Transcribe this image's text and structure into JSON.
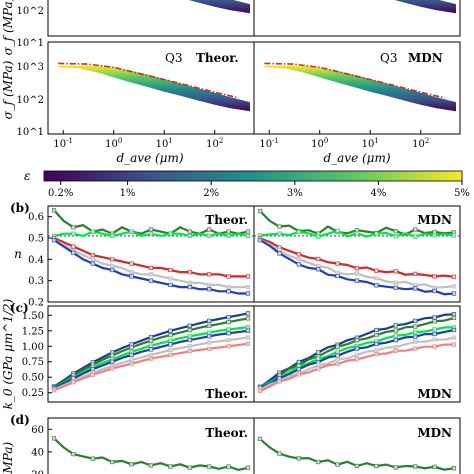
{
  "figure": {
    "colorbar": {
      "label": "ε",
      "ticks": [
        "0.2%",
        "1%",
        "2%",
        "3%",
        "4%",
        "5%"
      ],
      "tick_values": [
        0.2,
        1,
        2,
        3,
        4,
        5
      ],
      "min": 0.0,
      "max": 5.0,
      "colormap": [
        "#440154",
        "#3b528b",
        "#21918c",
        "#5ec962",
        "#fde725"
      ]
    },
    "panels": [
      {
        "id": "a-top-left",
        "tag": "",
        "title": ""
      },
      {
        "id": "a-top-right",
        "tag": "",
        "title": ""
      },
      {
        "id": "a-bot-left",
        "tag": "Q3",
        "title": "Theor."
      },
      {
        "id": "a-bot-right",
        "tag": "Q3",
        "title": "MDN"
      },
      {
        "id": "b-left",
        "label": "(b)",
        "title": "Theor."
      },
      {
        "id": "b-right",
        "label": "",
        "title": "MDN"
      },
      {
        "id": "c-left",
        "label": "(c)",
        "title": "Theor."
      },
      {
        "id": "c-right",
        "label": "",
        "title": "MDN"
      },
      {
        "id": "d-left",
        "label": "(d)",
        "title": "Theor."
      },
      {
        "id": "d-right",
        "label": "",
        "title": "MDN"
      }
    ],
    "axis_labels": {
      "sigma": "σ_f (MPa)",
      "n": "n",
      "k0": "k_0 (GPa μm^1/2)",
      "d": "(MPa)",
      "dave_left": "d_ave (μm)",
      "dave_right": "d_ave (μm)"
    },
    "ticks": {
      "sigma_y": [
        "10^1",
        "10^2",
        "10^3"
      ],
      "dave_x": [
        "10^-1",
        "10^0",
        "10^1",
        "10^2"
      ],
      "n_y": [
        "0.2",
        "0.3",
        "0.4",
        "0.5",
        "0.6"
      ],
      "k0_y": [
        "0.25",
        "0.50",
        "0.75",
        "1.00",
        "1.25",
        "1.50"
      ],
      "d_y": [
        "20",
        "40",
        "60"
      ]
    }
  },
  "chart_data": [
    {
      "type": "area",
      "panel": "a-bottom",
      "xlabel": "d_ave (μm)",
      "ylabel": "σ_f (MPa)",
      "xscale": "log",
      "yscale": "log",
      "xlim": [
        0.05,
        600
      ],
      "ylim": [
        10,
        10000
      ],
      "band": {
        "x": [
          0.08,
          0.2,
          0.5,
          1,
          2,
          5,
          10,
          20,
          50,
          100,
          200,
          500
        ],
        "y_low_eps_min": [
          1500,
          1400,
          1000,
          700,
          500,
          330,
          240,
          180,
          120,
          90,
          70,
          55
        ],
        "y_high_eps_max": [
          1700,
          1700,
          1650,
          1500,
          1200,
          850,
          620,
          450,
          300,
          220,
          160,
          110
        ]
      },
      "reference_line": {
        "color": "#d62728",
        "style": "dash-dot",
        "x": [
          0.08,
          0.3,
          1,
          10,
          100,
          300
        ],
        "y": [
          2000,
          1900,
          1500,
          600,
          230,
          150
        ]
      }
    },
    {
      "type": "line",
      "panel": "b",
      "ylabel": "n",
      "ylim": [
        0.2,
        0.65
      ],
      "hline": 0.51,
      "x": [
        0,
        0.05,
        0.1,
        0.15,
        0.2,
        0.25,
        0.3,
        0.35,
        0.4,
        0.45,
        0.5,
        0.55,
        0.6,
        0.65,
        0.7,
        0.75,
        0.8,
        0.85,
        0.9,
        0.95,
        1
      ],
      "series": [
        {
          "color": "#2e7d32",
          "values": [
            0.63,
            0.58,
            0.55,
            0.56,
            0.53,
            0.54,
            0.52,
            0.55,
            0.53,
            0.52,
            0.54,
            0.53,
            0.52,
            0.55,
            0.53,
            0.52,
            0.54,
            0.52,
            0.53,
            0.52,
            0.53
          ]
        },
        {
          "color": "#00e640",
          "values": [
            0.51,
            0.52,
            0.52,
            0.51,
            0.53,
            0.52,
            0.51,
            0.52,
            0.53,
            0.51,
            0.52,
            0.51,
            0.52,
            0.52,
            0.51,
            0.52,
            0.51,
            0.52,
            0.51,
            0.52,
            0.51
          ]
        },
        {
          "color": "#d62728",
          "values": [
            0.5,
            0.48,
            0.46,
            0.44,
            0.42,
            0.41,
            0.4,
            0.39,
            0.38,
            0.37,
            0.36,
            0.36,
            0.35,
            0.34,
            0.34,
            0.33,
            0.33,
            0.33,
            0.32,
            0.32,
            0.32
          ]
        },
        {
          "color": "#c0c0c0",
          "values": [
            0.49,
            0.47,
            0.44,
            0.42,
            0.4,
            0.38,
            0.37,
            0.36,
            0.34,
            0.33,
            0.33,
            0.32,
            0.31,
            0.3,
            0.29,
            0.29,
            0.28,
            0.28,
            0.27,
            0.27,
            0.27
          ]
        },
        {
          "color": "#1f3fb0",
          "values": [
            0.49,
            0.46,
            0.43,
            0.4,
            0.38,
            0.36,
            0.35,
            0.33,
            0.32,
            0.31,
            0.3,
            0.29,
            0.28,
            0.27,
            0.27,
            0.26,
            0.26,
            0.25,
            0.25,
            0.24,
            0.24
          ]
        }
      ]
    },
    {
      "type": "line",
      "panel": "c",
      "ylabel": "k_0 (GPa μm^1/2)",
      "ylim": [
        0.1,
        1.65
      ],
      "x": [
        0,
        0.05,
        0.1,
        0.15,
        0.2,
        0.25,
        0.3,
        0.35,
        0.4,
        0.45,
        0.5,
        0.55,
        0.6,
        0.65,
        0.7,
        0.75,
        0.8,
        0.85,
        0.9,
        0.95,
        1
      ],
      "series": [
        {
          "color": "#1a3f8a",
          "values": [
            0.35,
            0.45,
            0.56,
            0.65,
            0.74,
            0.82,
            0.9,
            0.97,
            1.03,
            1.09,
            1.15,
            1.2,
            1.25,
            1.29,
            1.33,
            1.37,
            1.41,
            1.44,
            1.47,
            1.5,
            1.53
          ]
        },
        {
          "color": "#2e7d32",
          "values": [
            0.34,
            0.43,
            0.53,
            0.62,
            0.7,
            0.78,
            0.85,
            0.92,
            0.98,
            1.04,
            1.09,
            1.14,
            1.18,
            1.22,
            1.26,
            1.3,
            1.33,
            1.36,
            1.39,
            1.42,
            1.45
          ]
        },
        {
          "color": "#00e640",
          "values": [
            0.33,
            0.41,
            0.5,
            0.58,
            0.66,
            0.73,
            0.79,
            0.85,
            0.91,
            0.96,
            1.01,
            1.05,
            1.09,
            1.13,
            1.16,
            1.19,
            1.22,
            1.25,
            1.27,
            1.29,
            1.31
          ]
        },
        {
          "color": "#1f3fb0",
          "values": [
            0.32,
            0.4,
            0.48,
            0.56,
            0.63,
            0.69,
            0.75,
            0.81,
            0.86,
            0.91,
            0.95,
            0.99,
            1.03,
            1.07,
            1.1,
            1.13,
            1.16,
            1.19,
            1.21,
            1.23,
            1.25
          ]
        },
        {
          "color": "#c0c0c0",
          "values": [
            0.3,
            0.37,
            0.44,
            0.51,
            0.57,
            0.63,
            0.68,
            0.73,
            0.78,
            0.82,
            0.86,
            0.9,
            0.94,
            0.97,
            1.0,
            1.03,
            1.06,
            1.08,
            1.1,
            1.12,
            1.14
          ]
        },
        {
          "color": "#f08080",
          "values": [
            0.29,
            0.35,
            0.42,
            0.48,
            0.54,
            0.59,
            0.64,
            0.68,
            0.72,
            0.76,
            0.8,
            0.83,
            0.86,
            0.89,
            0.92,
            0.94,
            0.96,
            0.98,
            1.0,
            1.02,
            1.04
          ]
        }
      ]
    },
    {
      "type": "line",
      "panel": "d",
      "ylabel": "(MPa)",
      "ylim": [
        8,
        70
      ],
      "x": [
        0,
        0.05,
        0.1,
        0.15,
        0.2,
        0.25,
        0.3,
        0.35,
        0.4,
        0.45,
        0.5,
        0.55,
        0.6,
        0.65,
        0.7,
        0.75,
        0.8,
        0.85,
        0.9,
        0.95,
        1
      ],
      "series": [
        {
          "color": "#2e7d32",
          "values": [
            52,
            44,
            38,
            36,
            34,
            35,
            31,
            32,
            29,
            31,
            28,
            30,
            27,
            29,
            26,
            28,
            27,
            25,
            27,
            24,
            26
          ]
        }
      ]
    }
  ]
}
